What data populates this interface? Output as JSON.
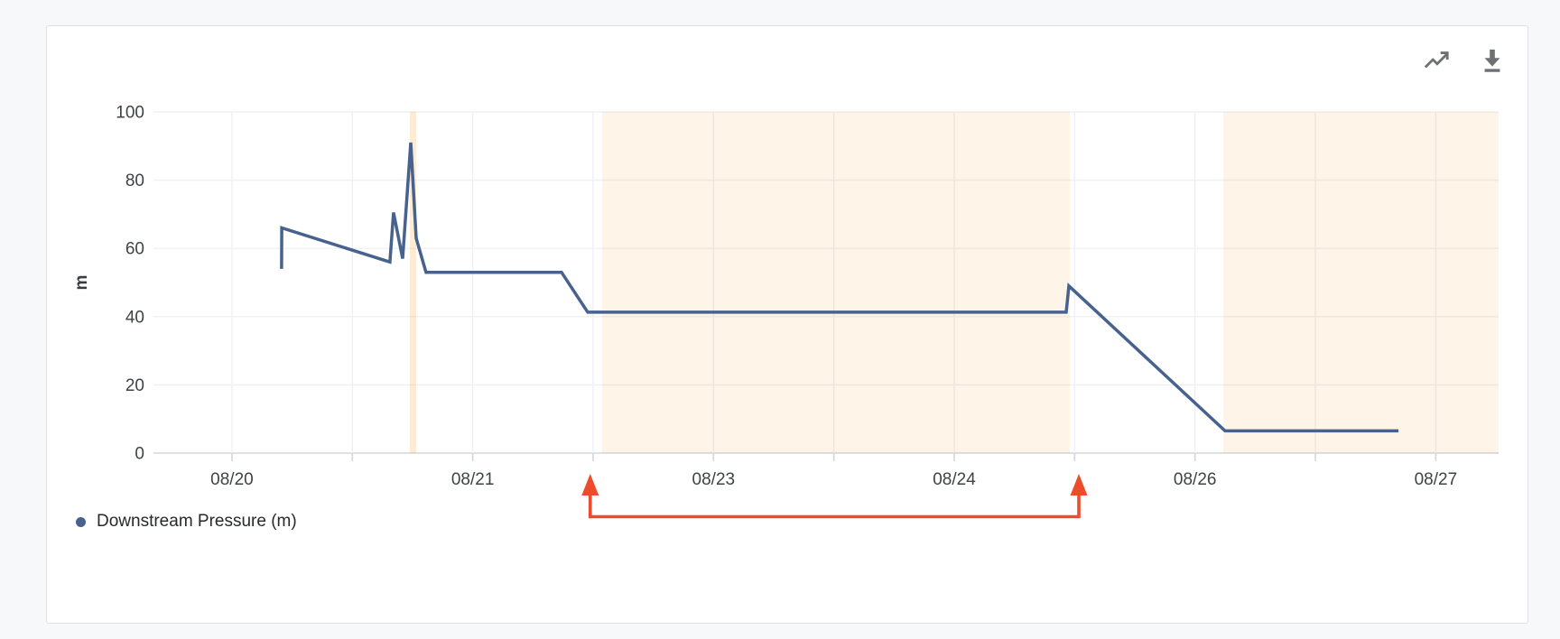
{
  "page": {
    "background": "#f7f8f9"
  },
  "card": {
    "background": "#ffffff",
    "border_color": "#dee0e3"
  },
  "toolbar": {
    "icons": [
      {
        "name": "trend-line-icon",
        "color": "#6e7073"
      },
      {
        "name": "download-icon",
        "color": "#6e7073"
      }
    ]
  },
  "legend": {
    "items": [
      {
        "label": "Downstream Pressure (m)",
        "marker_color": "#47628e"
      }
    ]
  },
  "chart_data": {
    "type": "line",
    "title": "",
    "xlabel": "",
    "ylabel": "m",
    "grid": true,
    "legend_position": "bottom-left",
    "x_axis": {
      "unit": "date (MM/DD); labeled days equally spaced, unlabeled minor tick at each half interval (08/22 and 08/25 are skipped)",
      "range_u": [
        -0.326,
        5.261
      ],
      "ticks": [
        {
          "u": 0.0,
          "label": "08/20"
        },
        {
          "u": 0.5,
          "label": ""
        },
        {
          "u": 1.0,
          "label": "08/21"
        },
        {
          "u": 1.5,
          "label": ""
        },
        {
          "u": 2.0,
          "label": "08/23"
        },
        {
          "u": 2.5,
          "label": ""
        },
        {
          "u": 3.0,
          "label": "08/24"
        },
        {
          "u": 3.5,
          "label": ""
        },
        {
          "u": 4.0,
          "label": "08/26"
        },
        {
          "u": 4.5,
          "label": ""
        },
        {
          "u": 5.0,
          "label": "08/27"
        }
      ]
    },
    "y_axis": {
      "name": "m",
      "range": [
        0,
        100
      ],
      "ticks": [
        {
          "value": 0,
          "label": "0"
        },
        {
          "value": 20,
          "label": "20"
        },
        {
          "value": 40,
          "label": "40"
        },
        {
          "value": 60,
          "label": "60"
        },
        {
          "value": 80,
          "label": "80"
        },
        {
          "value": 100,
          "label": "100"
        }
      ]
    },
    "series": [
      {
        "name": "Downstream Pressure (m)",
        "color": "#47628e",
        "line_width": 3.5,
        "points": [
          [
            0.206,
            54
          ],
          [
            0.207,
            66
          ],
          [
            0.656,
            56
          ],
          [
            0.671,
            70.5
          ],
          [
            0.709,
            57
          ],
          [
            0.7425,
            91
          ],
          [
            0.765,
            63
          ],
          [
            0.806,
            53
          ],
          [
            1.369,
            53
          ],
          [
            1.4775,
            41.3
          ],
          [
            3.465,
            41.3
          ],
          [
            3.4763,
            49
          ],
          [
            4.125,
            6.5
          ],
          [
            4.845,
            6.5
          ]
        ]
      }
    ],
    "bands": [
      {
        "u_start": 0.7387,
        "u_end": 0.765,
        "opacity": 0.2
      },
      {
        "u_start": 1.5375,
        "u_end": 3.48,
        "opacity": 0.11
      },
      {
        "u_start": 4.1175,
        "u_end": 5.261,
        "opacity": 0.11
      }
    ],
    "annotations": {
      "bracket": {
        "u_start": 1.488,
        "u_end": 3.5175,
        "color": "#ec4b2c",
        "description": "red up-arrow range bracket below x-axis"
      }
    },
    "colors": {
      "gridline": "#eef0f3",
      "axis_line": "#d4d6d9",
      "band_fill": "#f59a23",
      "text": "#3f4346"
    }
  }
}
